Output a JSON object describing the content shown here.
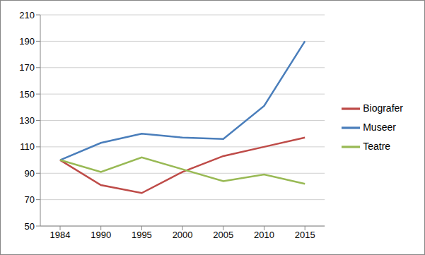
{
  "chart_data": {
    "type": "line",
    "categories": [
      "1984",
      "1990",
      "1995",
      "2000",
      "2005",
      "2010",
      "2015"
    ],
    "series": [
      {
        "name": "Museer",
        "color": "#4a7ebb",
        "values": [
          100,
          113,
          120,
          117,
          116,
          141,
          190
        ]
      },
      {
        "name": "Biografer",
        "color": "#be4b48",
        "values": [
          100,
          81,
          75,
          91,
          103,
          110,
          117
        ]
      },
      {
        "name": "Teatre",
        "color": "#98b954",
        "values": [
          100,
          91,
          102,
          93,
          84,
          89,
          82
        ]
      }
    ],
    "ylim": [
      50,
      210
    ],
    "yticks": [
      50,
      70,
      90,
      110,
      130,
      150,
      170,
      190,
      210
    ],
    "grid": true,
    "legend": "right"
  }
}
